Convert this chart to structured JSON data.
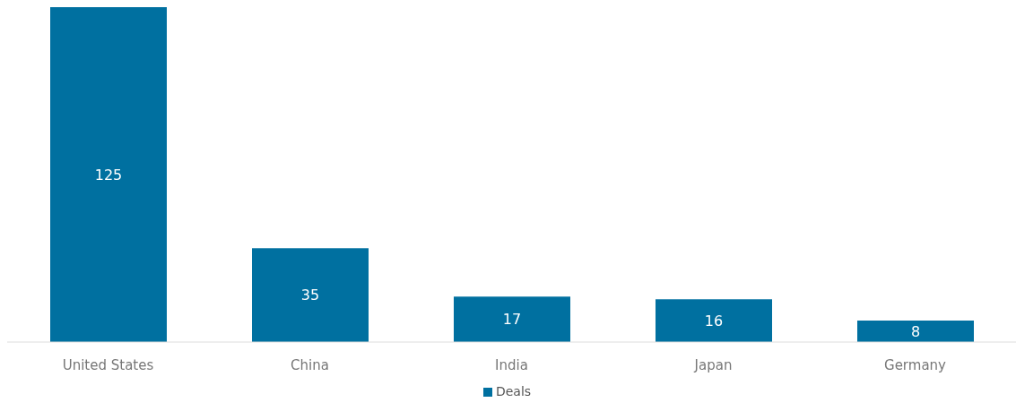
{
  "chart_data": {
    "type": "bar",
    "categories": [
      "United States",
      "China",
      "India",
      "Japan",
      "Germany"
    ],
    "series": [
      {
        "name": "Deals",
        "color": "#0070a0",
        "values": [
          125,
          35,
          17,
          16,
          8
        ]
      }
    ],
    "data_labels": true,
    "legend": "bottom",
    "grid": false
  }
}
